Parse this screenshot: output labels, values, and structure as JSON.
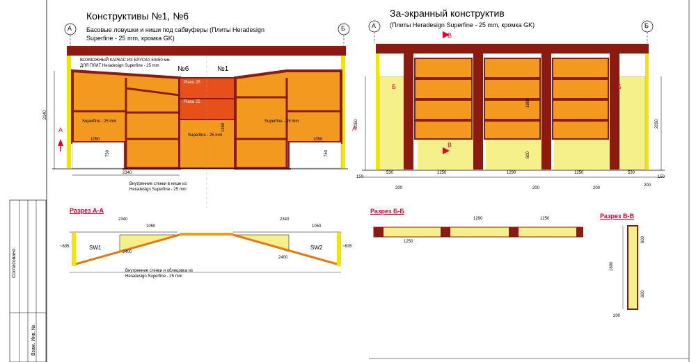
{
  "left": {
    "title": "Конструктивы №1, №6",
    "subtitle_1": "Басовые ловушки и ниши под сабвуферы (Плиты Heradesign",
    "subtitle_2": "Superfine - 25 mm, кромка GK)",
    "axis_a": "А",
    "axis_b": "Б",
    "label_n6": "№6",
    "label_n1": "№1",
    "frame_note_1": "ВОЗМОЖНЫЙ КАРКАС ИЗ БРУСКА 50х50 мм.",
    "frame_note_2": "ДЛЯ ПЛИТ Heradesign Superfine - 25 mm",
    "piano_1": "Piano 25",
    "piano_2": "Piano 25",
    "superfine_left": "Superfine - 25 mm",
    "superfine_center": "Superfine - 25 mm",
    "superfine_right": "Superfine - 25 mm",
    "dim_2140": "2140",
    "dim_1050_left": "1050",
    "dim_750_left": "750",
    "dim_2340": "2340",
    "dim_1950": "1950",
    "dim_1050_right": "1050",
    "dim_750_right": "750",
    "section_marker_a": "А",
    "inner_note_1": "Внутренние стенки в нише из",
    "inner_note_2": "Heradesign Superfine - 25 mm"
  },
  "right": {
    "title": "За-экранный конструктив",
    "subtitle": "(Плиты Heradesign Superfine - 25 mm, кромка GK)",
    "axis_a": "А",
    "axis_b": "Б",
    "marker_v_top": "В",
    "marker_v_bottom": "В",
    "marker_b_left": "Б",
    "marker_b_right": "Б",
    "marker_a": "А",
    "dim_2050_left": "2050",
    "dim_2050_right": "2050",
    "dim_1800": "1800",
    "dim_600": "600",
    "bottom_dims": [
      "150",
      "530",
      "1250",
      "1290",
      "1250",
      "530",
      "150"
    ],
    "dim_200_a": "200",
    "dim_200_b": "200",
    "dim_200_c": "200",
    "dim_200_d": "200"
  },
  "section_aa": {
    "caption": "Разрез А-А",
    "dim_2340_left": "2340",
    "dim_1050_left": "1050",
    "dim_2340_right": "2340",
    "dim_1050_right": "1050",
    "dim_635_left": "~635",
    "dim_635_right": "~635",
    "dim_2400_left": "2400",
    "dim_2400_right": "2400",
    "sw1": "SW1",
    "sw2": "SW2",
    "note_1": "Внутренние стенки и облицовка из",
    "note_2": "Heradesign Superfine - 25 mm"
  },
  "section_bb": {
    "caption": "Разрез Б-Б",
    "dim_1290": "1290",
    "dim_1250_right": "1250",
    "dim_1250_left": "1250"
  },
  "section_vv": {
    "caption": "Разрез В-В",
    "dim_1800": "1800",
    "dim_600_top": "600",
    "dim_600_bottom": "600",
    "dim_200": "200"
  },
  "stamp": {
    "agreed": "Согласовано:",
    "inv": "Взам. Инв. №"
  },
  "colors": {
    "frame": "#8b1a10",
    "panel": "#f39a1e",
    "panel_dark": "#e07a10",
    "piano": "#e8501a",
    "wall": "#f5f08a",
    "yellow": "#f2e600",
    "red_mark": "#e0002a"
  }
}
